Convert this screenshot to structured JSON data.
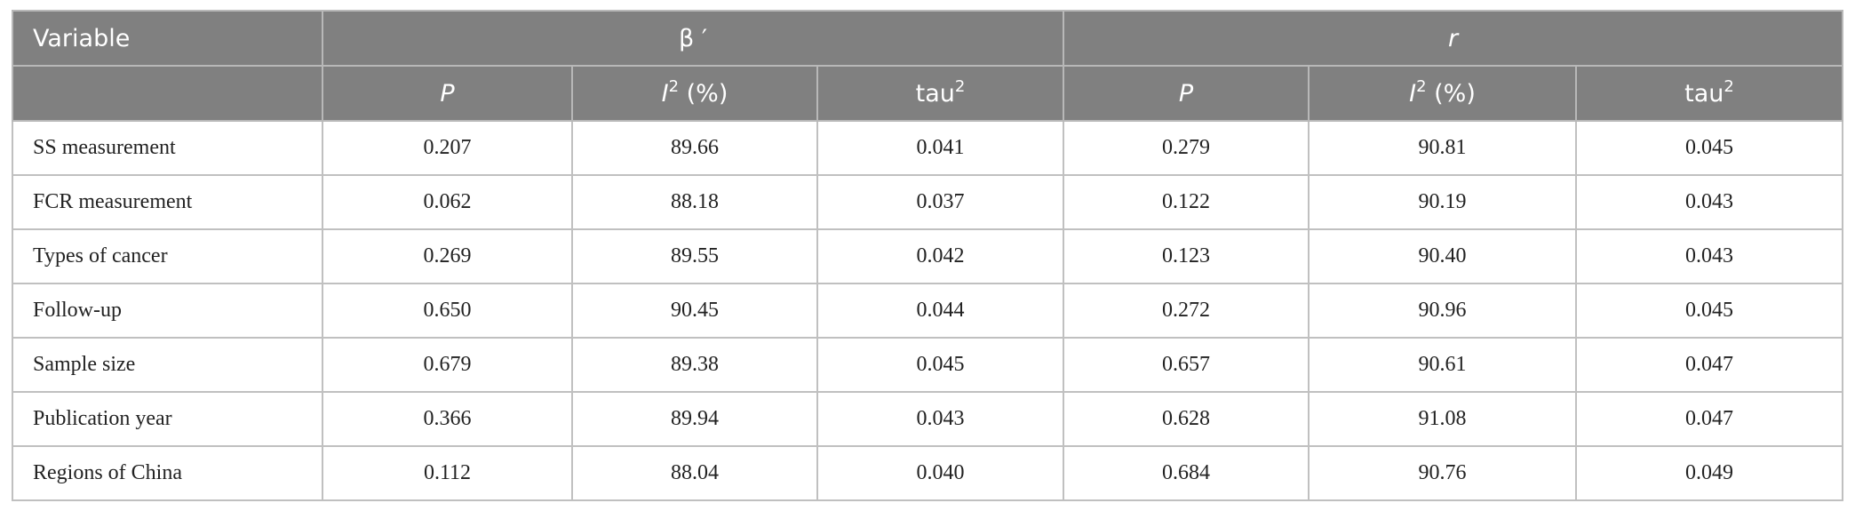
{
  "table": {
    "group_header": [
      "Variable",
      "β ′",
      "r"
    ],
    "sub_header": [
      {
        "text": "P"
      },
      {
        "text": "I",
        "sup": "2",
        "after": " (%)"
      },
      {
        "text": "tau",
        "sup": "2"
      },
      {
        "text": "P"
      },
      {
        "text": "I",
        "sup": "2",
        "after": " (%)"
      },
      {
        "text": "tau",
        "sup": "2"
      }
    ],
    "rows": [
      [
        "SS measurement",
        "0.207",
        "89.66",
        "0.041",
        "0.279",
        "90.81",
        "0.045"
      ],
      [
        "FCR measurement",
        "0.062",
        "88.18",
        "0.037",
        "0.122",
        "90.19",
        "0.043"
      ],
      [
        "Types of cancer",
        "0.269",
        "89.55",
        "0.042",
        "0.123",
        "90.40",
        "0.043"
      ],
      [
        "Follow-up",
        "0.650",
        "90.45",
        "0.044",
        "0.272",
        "90.96",
        "0.045"
      ],
      [
        "Sample size",
        "0.679",
        "89.38",
        "0.045",
        "0.657",
        "90.61",
        "0.047"
      ],
      [
        "Publication year",
        "0.366",
        "89.94",
        "0.043",
        "0.628",
        "91.08",
        "0.047"
      ],
      [
        "Regions of China",
        "0.112",
        "88.04",
        "0.040",
        "0.684",
        "90.76",
        "0.049"
      ]
    ]
  }
}
